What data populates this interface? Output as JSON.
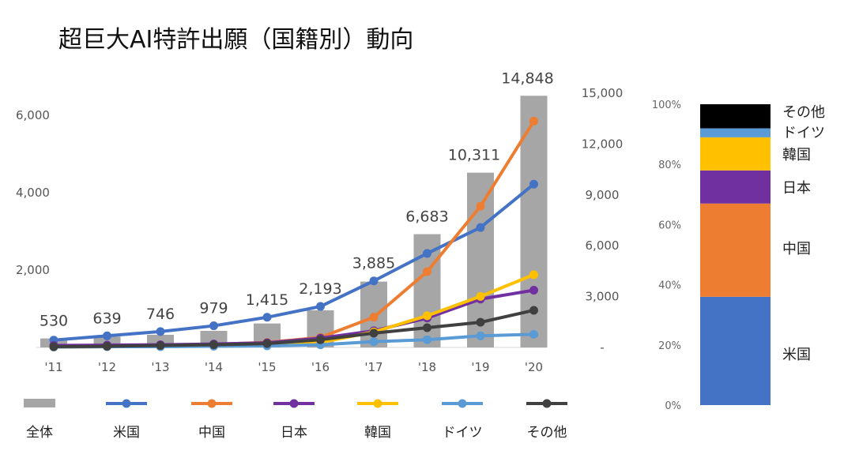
{
  "page_title": "超巨大AI特許出願（国籍別）動向",
  "chart_data": [
    {
      "type": "bar+line",
      "categories": [
        "'11",
        "'12",
        "'13",
        "'14",
        "'15",
        "'16",
        "'17",
        "'18",
        "'19",
        "'20"
      ],
      "totals": {
        "name": "全体",
        "axis": "right",
        "values": [
          530,
          639,
          746,
          979,
          1415,
          2193,
          3885,
          6683,
          10311,
          14848
        ],
        "labels": [
          "530",
          "639",
          "746",
          "979",
          "1,415",
          "2,193",
          "3,885",
          "6,683",
          "10,311",
          "14,848"
        ],
        "color": "#a6a6a6"
      },
      "series": [
        {
          "name": "米国",
          "axis": "left",
          "color": "#4472c4",
          "values": [
            190,
            300,
            410,
            560,
            780,
            1060,
            1720,
            2430,
            3100,
            4220
          ]
        },
        {
          "name": "中国",
          "axis": "left",
          "color": "#ed7d31",
          "values": [
            20,
            30,
            50,
            80,
            130,
            260,
            780,
            1960,
            3650,
            5850
          ]
        },
        {
          "name": "日本",
          "axis": "left",
          "color": "#7030a0",
          "values": [
            50,
            60,
            70,
            90,
            120,
            240,
            430,
            760,
            1250,
            1480
          ]
        },
        {
          "name": "韓国",
          "axis": "left",
          "color": "#ffc000",
          "values": [
            10,
            20,
            30,
            40,
            70,
            130,
            400,
            820,
            1320,
            1880
          ]
        },
        {
          "name": "ドイツ",
          "axis": "left",
          "color": "#5b9bd5",
          "values": [
            10,
            20,
            20,
            30,
            40,
            70,
            150,
            200,
            300,
            340
          ]
        },
        {
          "name": "その他",
          "axis": "left",
          "color": "#404040",
          "values": [
            20,
            30,
            50,
            70,
            100,
            200,
            370,
            510,
            650,
            960
          ]
        }
      ],
      "left_axis": {
        "ylim": [
          0,
          6500
        ],
        "ticks": [
          2000,
          4000,
          6000
        ],
        "tick_labels": [
          "2,000",
          "4,000",
          "6,000"
        ]
      },
      "right_axis": {
        "ylim": [
          0,
          15000
        ],
        "ticks": [
          0,
          3000,
          6000,
          9000,
          12000,
          15000
        ],
        "tick_labels": [
          "-",
          "3,000",
          "6,000",
          "9,000",
          "12,000",
          "15,000"
        ]
      },
      "grid": false,
      "legend": {
        "placement": "bottom",
        "entries": [
          "全体",
          "米国",
          "中国",
          "日本",
          "韓国",
          "ドイツ",
          "その他"
        ]
      }
    },
    {
      "type": "stacked-bar",
      "segments": [
        {
          "name": "米国",
          "value": 36,
          "color": "#4472c4"
        },
        {
          "name": "中国",
          "value": 31,
          "color": "#ed7d31"
        },
        {
          "name": "日本",
          "value": 11,
          "color": "#7030a0"
        },
        {
          "name": "韓国",
          "value": 11,
          "color": "#ffc000"
        },
        {
          "name": "ドイツ",
          "value": 3,
          "color": "#5b9bd5"
        },
        {
          "name": "その他",
          "value": 8,
          "color": "#000000"
        }
      ],
      "ylim": [
        0,
        100
      ],
      "tick_labels": [
        "0%",
        "20%",
        "40%",
        "60%",
        "80%",
        "100%"
      ]
    }
  ]
}
